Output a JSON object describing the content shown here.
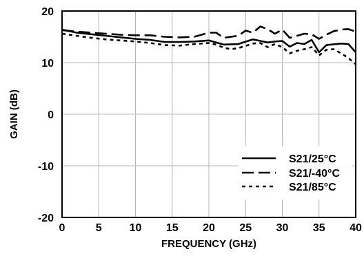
{
  "chart_data": {
    "type": "line",
    "xlabel": "FREQUENCY (GHz)",
    "ylabel": "GAIN (dB)",
    "xlim": [
      0,
      40
    ],
    "ylim": [
      -20,
      20
    ],
    "xticks": [
      0,
      5,
      10,
      15,
      20,
      25,
      30,
      35,
      40
    ],
    "yticks": [
      20,
      10,
      0,
      -10,
      -20
    ],
    "grid": true,
    "legend_position": "bottom-right",
    "series": [
      {
        "name": "S21/25°C",
        "style": "solid",
        "x": [
          0,
          2,
          4,
          6,
          8,
          10,
          12,
          14,
          16,
          18,
          20,
          22,
          24,
          26,
          27,
          28,
          29,
          30,
          31,
          32,
          33,
          34,
          35,
          36,
          38,
          39,
          40
        ],
        "y": [
          16.4,
          15.8,
          15.5,
          15.2,
          14.9,
          14.6,
          14.4,
          14.0,
          14.0,
          14.1,
          14.3,
          13.5,
          13.6,
          14.5,
          14.2,
          13.9,
          14.1,
          14.2,
          13.1,
          13.8,
          13.6,
          14.4,
          12.0,
          13.4,
          13.7,
          13.6,
          12.0
        ]
      },
      {
        "name": "S21/-40°C",
        "style": "dashed",
        "x": [
          0,
          2,
          4,
          6,
          8,
          10,
          12,
          14,
          16,
          18,
          20,
          21,
          22,
          24,
          25,
          26,
          27,
          28,
          29,
          30,
          31,
          32,
          33,
          34,
          35,
          36,
          37,
          38,
          39,
          40
        ],
        "y": [
          16.3,
          16.0,
          15.8,
          15.6,
          15.4,
          15.3,
          15.3,
          15.0,
          14.9,
          15.0,
          15.8,
          15.8,
          14.8,
          15.2,
          16.2,
          15.8,
          17.0,
          16.5,
          15.6,
          16.4,
          14.8,
          15.2,
          15.6,
          15.5,
          14.6,
          15.4,
          16.1,
          16.4,
          16.5,
          16.0
        ]
      },
      {
        "name": "S21/85°C",
        "style": "dotted",
        "x": [
          0,
          2,
          4,
          6,
          8,
          10,
          12,
          14,
          16,
          18,
          20,
          21,
          22,
          23,
          24,
          26,
          27,
          28,
          29,
          30,
          31,
          32,
          33,
          34,
          35,
          36,
          37,
          38,
          39,
          40
        ],
        "y": [
          15.6,
          15.2,
          14.8,
          14.5,
          14.3,
          14.1,
          13.8,
          13.4,
          13.3,
          13.6,
          13.8,
          13.5,
          12.9,
          12.6,
          12.8,
          13.7,
          13.8,
          13.0,
          13.6,
          13.0,
          11.8,
          12.3,
          12.6,
          13.0,
          11.4,
          12.5,
          12.6,
          11.8,
          10.9,
          9.7
        ]
      }
    ]
  }
}
